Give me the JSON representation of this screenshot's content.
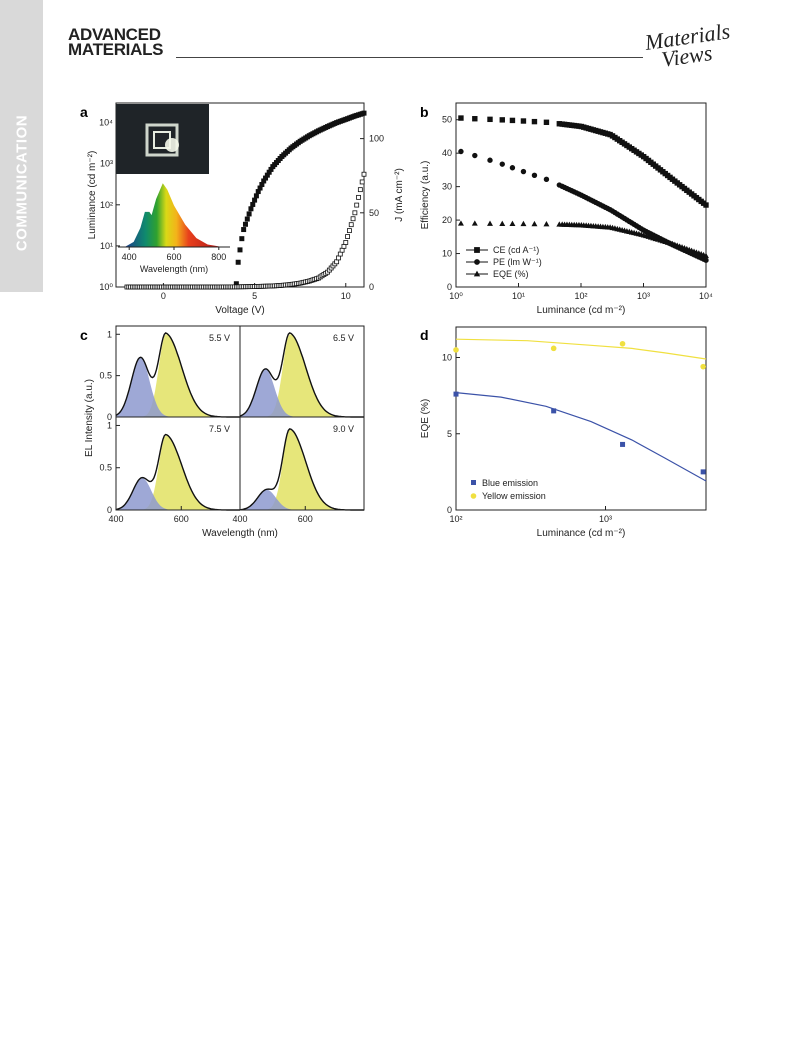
{
  "header": {
    "section_label": "COMMUNICATION",
    "journal_line1": "ADVANCED",
    "journal_line2": "MATERIALS",
    "publisher_logo": [
      "Materials",
      "Views"
    ]
  },
  "colors": {
    "blue_emission": "#3b52a8",
    "yellow_emission": "#f0e040",
    "blue_fill": "#8d99cf",
    "yellow_fill": "#e6e67a"
  },
  "panels": {
    "a": {
      "label": "a",
      "xlabel": "Voltage (V)",
      "ylabel_left": "Luminance (cd m⁻²)",
      "ylabel_right": "J (mA cm⁻²)",
      "xticks": [
        "0",
        "5",
        "10"
      ],
      "yticks_left": [
        "10⁰",
        "10¹",
        "10²",
        "10³",
        "10⁴"
      ],
      "yticks_right": [
        "0",
        "50",
        "100"
      ],
      "inset_xlabel": "Wavelength (nm)",
      "inset_xticks": [
        "400",
        "600",
        "800"
      ]
    },
    "b": {
      "label": "b",
      "xlabel": "Luminance (cd m⁻²)",
      "ylabel": "Efficiency (a.u.)",
      "xticks": [
        "10⁰",
        "10¹",
        "10²",
        "10³",
        "10⁴"
      ],
      "yticks": [
        "0",
        "10",
        "20",
        "30",
        "40",
        "50"
      ],
      "legend": [
        "CE (cd A⁻¹)",
        "PE (lm W⁻¹)",
        "EQE (%)"
      ]
    },
    "c": {
      "label": "c",
      "xlabel": "Wavelength (nm)",
      "ylabel": "EL Intensity (a.u.)",
      "xticks": [
        "400",
        "600"
      ],
      "yticks": [
        "0",
        "0.5",
        "1"
      ],
      "voltages": [
        "5.5 V",
        "6.5 V",
        "7.5 V",
        "9.0 V"
      ]
    },
    "d": {
      "label": "d",
      "xlabel": "Luminance (cd m⁻²)",
      "ylabel": "EQE (%)",
      "xticks": [
        "10²",
        "10³"
      ],
      "yticks": [
        "0",
        "5",
        "10"
      ],
      "legend": [
        "Blue emission",
        "Yellow emission"
      ]
    }
  },
  "chart_data": [
    {
      "panel": "a",
      "type": "scatter",
      "xlabel": "Voltage (V)",
      "ylabel": "Luminance (cd m⁻²)",
      "ylabel_right": "J (mA cm⁻²)",
      "xlim": [
        -2.6,
        11
      ],
      "ylim": [
        1,
        30000
      ],
      "yscale": "log",
      "ylim_right": [
        0,
        124
      ],
      "series": [
        {
          "marker": "filled-square",
          "axis": "left",
          "x": [
            4.0,
            4.1,
            4.2,
            4.3,
            4.4,
            4.6,
            4.8,
            5.0,
            5.2,
            5.5,
            5.8,
            6.0,
            6.5,
            7.0,
            7.5,
            8.0,
            8.5,
            9.0,
            9.5,
            10.0,
            10.5,
            11.0
          ],
          "y": [
            1.2,
            4,
            8,
            15,
            25,
            45,
            80,
            130,
            210,
            380,
            620,
            850,
            1500,
            2400,
            3500,
            4800,
            6300,
            8000,
            10000,
            12000,
            14500,
            17000
          ]
        },
        {
          "marker": "open-square",
          "axis": "right",
          "x": [
            -2,
            -1,
            0,
            1,
            2,
            3,
            4,
            5,
            6,
            6.5,
            7,
            7.5,
            8,
            8.5,
            9,
            9.5,
            10,
            10.5,
            11
          ],
          "y": [
            0,
            0,
            0,
            0,
            0,
            0,
            0.1,
            0.3,
            0.7,
            1.1,
            1.7,
            2.6,
            4,
            6,
            10,
            17,
            30,
            50,
            76
          ]
        }
      ],
      "inset_spectrum": {
        "type": "area",
        "x": [
          380,
          420,
          450,
          470,
          490,
          500,
          520,
          550,
          570,
          600,
          650,
          700,
          750,
          800
        ],
        "y": [
          0,
          0.08,
          0.3,
          0.55,
          0.55,
          0.5,
          0.75,
          1.0,
          0.9,
          0.65,
          0.35,
          0.14,
          0.04,
          0.01
        ]
      }
    },
    {
      "panel": "b",
      "type": "scatter",
      "xlabel": "Luminance (cd m⁻²)",
      "ylabel": "Efficiency (a.u.)",
      "xlim": [
        1,
        10000
      ],
      "xscale": "log",
      "ylim": [
        0,
        55
      ],
      "series": [
        {
          "name": "CE (cd A⁻¹)",
          "marker": "square",
          "x": [
            1.2,
            2,
            5,
            10,
            30,
            100,
            300,
            1000,
            3000,
            10000
          ],
          "y": [
            50.5,
            50.3,
            50,
            49.7,
            49.2,
            48,
            45.5,
            39,
            32,
            24.5
          ]
        },
        {
          "name": "PE (lm W⁻¹)",
          "marker": "circle",
          "x": [
            1.2,
            2,
            5,
            10,
            30,
            100,
            300,
            1000,
            3000,
            10000
          ],
          "y": [
            40.5,
            39.3,
            37,
            35,
            32,
            27.5,
            23,
            17,
            12.5,
            8
          ]
        },
        {
          "name": "EQE (%)",
          "marker": "triangle",
          "x": [
            1.2,
            2,
            5,
            10,
            30,
            100,
            300,
            1000,
            3000,
            10000
          ],
          "y": [
            19,
            19,
            18.9,
            18.9,
            18.8,
            18.5,
            17.8,
            15.5,
            12.8,
            9.3
          ]
        }
      ]
    },
    {
      "panel": "c",
      "type": "area",
      "xlabel": "Wavelength (nm)",
      "ylabel": "EL Intensity (a.u.)",
      "xlim": [
        400,
        780
      ],
      "ylim": [
        0,
        1.1
      ],
      "panels": [
        {
          "voltage": "5.5 V",
          "blue_peak": 0.72,
          "blue_center": 475,
          "yellow_peak": 1.0,
          "yellow_center": 553
        },
        {
          "voltage": "6.5 V",
          "blue_peak": 0.58,
          "blue_center": 478,
          "yellow_peak": 1.0,
          "yellow_center": 553
        },
        {
          "voltage": "7.5 V",
          "blue_peak": 0.38,
          "blue_center": 480,
          "yellow_peak": 0.88,
          "yellow_center": 553
        },
        {
          "voltage": "9.0 V",
          "blue_peak": 0.24,
          "blue_center": 482,
          "yellow_peak": 0.95,
          "yellow_center": 553
        }
      ]
    },
    {
      "panel": "d",
      "type": "scatter",
      "xlabel": "Luminance (cd m⁻²)",
      "ylabel": "EQE (%)",
      "xlim": [
        100,
        4700
      ],
      "xscale": "log",
      "ylim": [
        0,
        12
      ],
      "series": [
        {
          "name": "Blue emission",
          "color": "#3b52a8",
          "x": [
            100,
            450,
            1300,
            4500
          ],
          "y": [
            7.6,
            6.5,
            4.3,
            2.5
          ],
          "fit_x": [
            100,
            200,
            400,
            800,
            1500,
            2500,
            4700
          ],
          "fit_y": [
            7.7,
            7.4,
            6.8,
            5.8,
            4.6,
            3.4,
            1.9
          ]
        },
        {
          "name": "Yellow emission",
          "color": "#f0e040",
          "x": [
            100,
            450,
            1300,
            4500
          ],
          "y": [
            10.5,
            10.6,
            10.9,
            9.4
          ],
          "fit_x": [
            100,
            300,
            800,
            1500,
            2500,
            4700
          ],
          "fit_y": [
            11.2,
            11.1,
            10.8,
            10.6,
            10.3,
            9.9
          ]
        }
      ]
    }
  ]
}
